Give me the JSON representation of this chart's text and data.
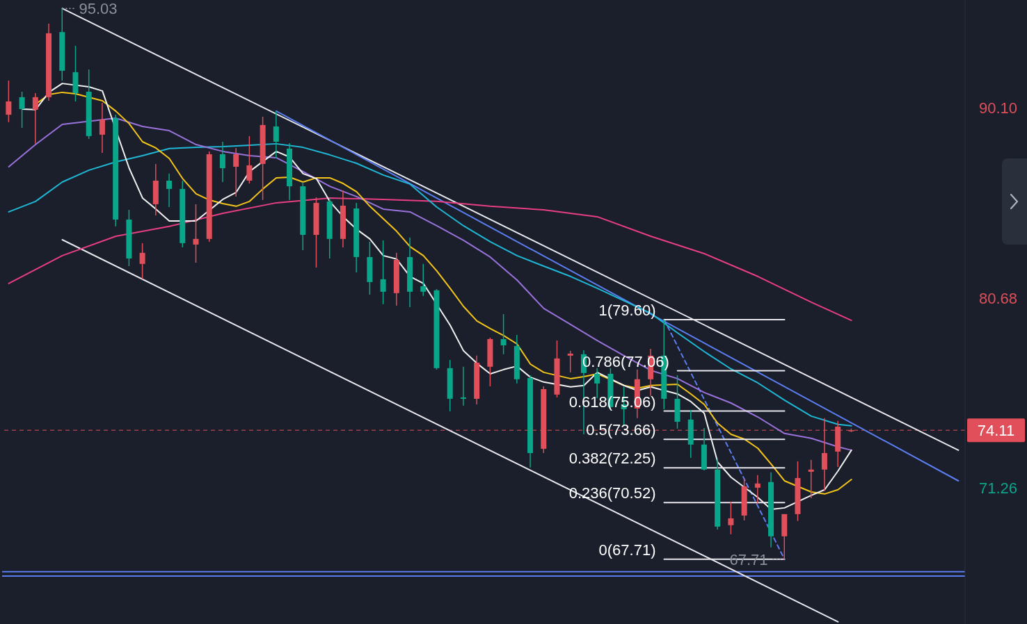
{
  "chart_data": {
    "type": "candlestick",
    "categories": [
      null,
      null,
      null,
      null,
      null,
      null,
      null,
      null,
      null,
      null,
      null,
      null,
      null,
      null,
      null,
      null,
      null,
      null,
      null,
      null,
      null,
      null,
      null,
      null,
      null,
      null,
      null,
      null,
      null,
      null,
      null,
      null,
      null,
      null,
      null,
      null,
      null,
      null,
      null,
      null,
      null,
      null,
      null,
      null,
      null,
      null,
      null,
      null,
      null,
      null,
      null,
      null,
      null,
      null,
      null,
      null,
      null,
      null,
      null,
      null,
      null,
      null,
      null,
      null,
      null,
      null,
      null,
      null,
      null,
      null,
      null,
      null
    ],
    "ohlc": [
      [
        89.76,
        91.45,
        89.39,
        90.42
      ],
      [
        90.63,
        90.9,
        89.11,
        90.04
      ],
      [
        90.01,
        90.83,
        88.32,
        90.63
      ],
      [
        90.63,
        94.28,
        90.45,
        93.8
      ],
      [
        93.86,
        95.03,
        91.45,
        91.94
      ],
      [
        91.87,
        93.18,
        90.42,
        90.83
      ],
      [
        90.9,
        92.0,
        88.56,
        88.7
      ],
      [
        88.77,
        90.35,
        87.87,
        89.52
      ],
      [
        89.59,
        89.76,
        84.22,
        84.56
      ],
      [
        84.56,
        85.04,
        82.25,
        82.63
      ],
      [
        82.36,
        83.39,
        81.6,
        82.91
      ],
      [
        85.32,
        87.32,
        84.77,
        86.49
      ],
      [
        86.49,
        86.84,
        85.18,
        86.08
      ],
      [
        86.08,
        86.49,
        83.18,
        83.39
      ],
      [
        83.32,
        85.32,
        82.42,
        83.6
      ],
      [
        83.6,
        87.94,
        83.46,
        87.8
      ],
      [
        87.8,
        88.42,
        86.42,
        87.11
      ],
      [
        87.18,
        88.11,
        85.7,
        87.8
      ],
      [
        86.49,
        88.7,
        86.35,
        87.25
      ],
      [
        87.32,
        89.66,
        85.53,
        89.25
      ],
      [
        89.18,
        89.94,
        87.59,
        88.42
      ],
      [
        88.08,
        88.35,
        85.53,
        86.21
      ],
      [
        86.21,
        86.42,
        83.04,
        83.8
      ],
      [
        83.8,
        85.66,
        82.18,
        85.39
      ],
      [
        85.46,
        85.63,
        82.63,
        83.6
      ],
      [
        83.6,
        86.01,
        83.18,
        85.25
      ],
      [
        85.11,
        85.39,
        81.94,
        82.7
      ],
      [
        82.7,
        83.46,
        80.84,
        81.46
      ],
      [
        81.6,
        83.53,
        80.36,
        80.98
      ],
      [
        80.91,
        82.91,
        80.29,
        82.56
      ],
      [
        82.7,
        83.67,
        80.22,
        80.98
      ],
      [
        81.25,
        82.36,
        80.77,
        80.98
      ],
      [
        81.05,
        81.11,
        77.12,
        77.19
      ],
      [
        77.19,
        77.6,
        75.05,
        75.67
      ],
      [
        75.74,
        77.26,
        75.33,
        75.67
      ],
      [
        75.67,
        77.81,
        75.39,
        77.46
      ],
      [
        77.26,
        78.7,
        76.29,
        78.63
      ],
      [
        78.63,
        79.87,
        77.88,
        78.32
      ],
      [
        78.29,
        78.84,
        76.43,
        76.64
      ],
      [
        76.7,
        76.84,
        72.26,
        72.98
      ],
      [
        73.19,
        76.29,
        72.98,
        76.15
      ],
      [
        75.88,
        78.56,
        75.74,
        77.67
      ],
      [
        77.81,
        78.05,
        76.98,
        77.91
      ],
      [
        77.88,
        78.08,
        73.91,
        76.95
      ],
      [
        76.91,
        77.19,
        75.7,
        76.43
      ],
      [
        76.91,
        77.19,
        75.19,
        75.26
      ],
      [
        75.39,
        76.26,
        74.33,
        75.15
      ],
      [
        75.19,
        77.12,
        74.71,
        76.64
      ],
      [
        76.64,
        78.15,
        75.81,
        77.81
      ],
      [
        77.81,
        79.6,
        75.15,
        75.67
      ],
      [
        75.67,
        76.84,
        74.19,
        74.53
      ],
      [
        74.64,
        75.12,
        72.74,
        73.4
      ],
      [
        73.4,
        74.22,
        72.12,
        72.16
      ],
      [
        72.16,
        72.71,
        69.19,
        69.33
      ],
      [
        69.4,
        70.57,
        68.95,
        69.74
      ],
      [
        69.88,
        71.74,
        69.64,
        71.33
      ],
      [
        71.26,
        71.88,
        70.47,
        71.47
      ],
      [
        71.54,
        72.02,
        68.3,
        68.85
      ],
      [
        68.85,
        69.95,
        67.71,
        69.95
      ],
      [
        69.95,
        72.57,
        69.61,
        71.74
      ],
      [
        72.05,
        72.64,
        70.74,
        72.16
      ],
      [
        72.16,
        74.71,
        71.09,
        72.98
      ],
      [
        73.05,
        74.57,
        72.29,
        74.29
      ],
      [
        74.08,
        74.19,
        74.02,
        74.11
      ],
      null,
      null,
      null,
      null,
      null,
      null,
      null,
      null
    ],
    "colors": [
      "#e04f5a",
      "#0aa68a",
      "#e04f5a",
      "#e04f5a",
      "#0aa68a",
      "#0aa68a",
      "#0aa68a",
      "#e04f5a",
      "#0aa68a",
      "#0aa68a",
      "#e04f5a",
      "#e04f5a",
      "#0aa68a",
      "#0aa68a",
      "#e04f5a",
      "#e04f5a",
      "#0aa68a",
      "#e04f5a",
      "#e04f5a",
      "#e04f5a",
      "#0aa68a",
      "#0aa68a",
      "#0aa68a",
      "#e04f5a",
      "#0aa68a",
      "#e04f5a",
      "#0aa68a",
      "#0aa68a",
      "#0aa68a",
      "#e04f5a",
      "#0aa68a",
      "#0aa68a",
      "#0aa68a",
      "#0aa68a",
      "#0aa68a",
      "#e04f5a",
      "#e04f5a",
      "#0aa68a",
      "#0aa68a",
      "#0aa68a",
      "#e04f5a",
      "#e04f5a",
      "#e04f5a",
      "#0aa68a",
      "#0aa68a",
      "#0aa68a",
      "#0aa68a",
      "#e04f5a",
      "#e04f5a",
      "#0aa68a",
      "#0aa68a",
      "#0aa68a",
      "#0aa68a",
      "#0aa68a",
      "#e04f5a",
      "#e04f5a",
      "#e04f5a",
      "#0aa68a",
      "#e04f5a",
      "#e04f5a",
      "#e04f5a",
      "#e04f5a",
      "#e04f5a",
      "#e04f5a",
      null,
      null,
      null,
      null,
      null,
      null,
      null,
      null
    ],
    "series": [
      {
        "type": "line",
        "color": "#e8e8ee",
        "values": [
          null,
          null,
          null,
          null,
          95.03,
          null,
          null,
          null,
          null,
          null,
          null,
          null,
          null,
          null,
          null,
          null,
          null,
          null,
          null,
          null,
          null,
          null,
          null,
          null,
          null,
          null,
          null,
          null,
          null,
          null,
          null,
          null,
          null,
          null,
          null,
          null,
          null,
          null,
          null,
          null,
          null,
          null,
          null,
          null,
          null,
          null,
          null,
          null,
          null,
          null,
          null,
          null,
          null,
          null,
          null,
          null,
          null,
          null,
          null,
          null,
          null,
          null,
          null,
          null,
          null,
          null,
          null,
          null,
          null,
          null,
          null,
          73.12
        ]
      },
      {
        "type": "line",
        "color": "#e8e8ee",
        "values": [
          null,
          null,
          null,
          null,
          83.56,
          null,
          null,
          null,
          null,
          null,
          null,
          null,
          null,
          null,
          null,
          null,
          null,
          null,
          null,
          null,
          null,
          null,
          null,
          null,
          null,
          null,
          null,
          null,
          null,
          null,
          null,
          null,
          null,
          null,
          null,
          null,
          null,
          null,
          null,
          null,
          null,
          null,
          null,
          null,
          null,
          null,
          null,
          null,
          null,
          null,
          null,
          null,
          null,
          null,
          null,
          null,
          null,
          null,
          null,
          null,
          null,
          null,
          64.61,
          null,
          null,
          null,
          null,
          null,
          null,
          null,
          null,
          null
        ]
      },
      {
        "type": "line",
        "color": "#5b7ef0",
        "values": [
          null,
          null,
          null,
          null,
          null,
          null,
          null,
          null,
          null,
          null,
          null,
          null,
          null,
          null,
          null,
          null,
          null,
          null,
          null,
          null,
          89.94,
          null,
          null,
          null,
          null,
          null,
          null,
          null,
          null,
          null,
          null,
          null,
          null,
          null,
          null,
          null,
          null,
          null,
          null,
          null,
          null,
          null,
          null,
          null,
          null,
          null,
          null,
          null,
          null,
          null,
          null,
          null,
          null,
          null,
          null,
          null,
          null,
          null,
          null,
          null,
          null,
          null,
          null,
          null,
          null,
          null,
          null,
          null,
          null,
          null,
          null,
          71.6
        ]
      },
      {
        "type": "line",
        "color": "#5b7ef0",
        "line_style": "dashed",
        "values": [
          null,
          null,
          null,
          null,
          null,
          null,
          null,
          null,
          null,
          null,
          null,
          null,
          null,
          null,
          null,
          null,
          null,
          null,
          null,
          null,
          null,
          null,
          null,
          null,
          null,
          null,
          null,
          null,
          null,
          null,
          null,
          null,
          null,
          null,
          null,
          null,
          null,
          null,
          null,
          null,
          null,
          null,
          null,
          null,
          null,
          null,
          null,
          null,
          null,
          79.6,
          null,
          null,
          null,
          null,
          null,
          null,
          null,
          null,
          67.71,
          null,
          null,
          null,
          null,
          null,
          null,
          null,
          null,
          null,
          null,
          null,
          null,
          null
        ]
      },
      {
        "type": "line",
        "color": "#e83e82",
        "values": [
          81.39,
          null,
          null,
          null,
          82.77,
          null,
          null,
          null,
          83.73,
          null,
          null,
          null,
          84.22,
          null,
          null,
          null,
          84.87,
          null,
          null,
          null,
          85.39,
          null,
          null,
          null,
          85.63,
          null,
          null,
          null,
          85.56,
          null,
          null,
          null,
          85.46,
          null,
          null,
          null,
          85.22,
          null,
          null,
          null,
          85.04,
          null,
          null,
          null,
          84.7,
          null,
          null,
          null,
          83.73,
          null,
          null,
          null,
          82.87,
          null,
          null,
          null,
          81.74,
          null,
          null,
          null,
          80.46,
          null,
          null,
          79.56,
          null,
          null,
          null,
          null,
          null,
          null,
          null,
          null
        ]
      },
      {
        "type": "line",
        "color": "#1fb8d6",
        "values": [
          84.94,
          null,
          85.46,
          null,
          86.42,
          null,
          87.01,
          null,
          87.42,
          null,
          87.73,
          null,
          88.08,
          null,
          88.14,
          null,
          88.18,
          null,
          88.25,
          null,
          88.32,
          null,
          88.14,
          null,
          87.77,
          null,
          87.35,
          null,
          86.77,
          null,
          86.32,
          null,
          85.18,
          null,
          84.25,
          null,
          83.46,
          null,
          82.77,
          null,
          82.25,
          null,
          81.74,
          null,
          81.15,
          null,
          80.53,
          null,
          79.91,
          null,
          78.94,
          null,
          78.01,
          null,
          77.15,
          null,
          76.46,
          null,
          75.6,
          null,
          74.81,
          null,
          74.4,
          74.33,
          null,
          null,
          null,
          null,
          null,
          null,
          null,
          null
        ]
      },
      {
        "type": "line",
        "color": "#9a72dc",
        "values": [
          87.18,
          null,
          88.28,
          null,
          89.28,
          null,
          null,
          null,
          89.59,
          null,
          89.18,
          null,
          88.97,
          null,
          88.28,
          null,
          87.94,
          null,
          87.73,
          null,
          87.63,
          null,
          86.94,
          null,
          86.21,
          null,
          85.7,
          null,
          85.08,
          null,
          84.94,
          null,
          84.25,
          null,
          83.53,
          null,
          82.7,
          null,
          81.56,
          null,
          80.15,
          null,
          79.36,
          null,
          78.56,
          null,
          77.81,
          null,
          77.08,
          null,
          76.67,
          null,
          75.98,
          null,
          75.46,
          null,
          74.77,
          null,
          73.95,
          null,
          73.71,
          null,
          73.29,
          73.12,
          null,
          null,
          null,
          null,
          null,
          null,
          null,
          null
        ]
      },
      {
        "type": "line",
        "color": "#f5c518",
        "values": [
          null,
          null,
          90.28,
          90.76,
          90.87,
          90.8,
          null,
          90.45,
          89.94,
          89.32,
          88.42,
          88.11,
          87.59,
          86.59,
          85.84,
          85.53,
          85.35,
          85.22,
          85.46,
          86.08,
          86.63,
          86.66,
          86.42,
          86.63,
          86.63,
          86.35,
          85.94,
          85.22,
          84.6,
          83.98,
          83.22,
          82.77,
          82.01,
          81.15,
          80.25,
          79.53,
          79.15,
          78.81,
          78.39,
          77.39,
          76.98,
          null,
          76.67,
          76.77,
          76.91,
          null,
          76.33,
          76.19,
          76.33,
          null,
          76.39,
          75.91,
          75.39,
          74.46,
          73.91,
          73.67,
          73.22,
          72.43,
          71.6,
          null,
          71.05,
          70.95,
          71.16,
          71.67,
          null,
          null,
          null,
          null,
          null,
          null,
          null,
          null
        ]
      },
      {
        "type": "line",
        "color": "#f2f2f2",
        "values": [
          null,
          90.04,
          90.01,
          90.87,
          91.31,
          null,
          91.14,
          90.94,
          null,
          87.11,
          85.63,
          85.08,
          84.49,
          null,
          84.49,
          null,
          85.56,
          85.91,
          86.94,
          null,
          87.94,
          87.66,
          86.84,
          86.59,
          85.46,
          84.7,
          84.08,
          83.6,
          82.77,
          82.6,
          81.74,
          81.39,
          null,
          79.32,
          78.05,
          77.43,
          76.91,
          77.12,
          77.29,
          76.74,
          76.5,
          null,
          76.26,
          76.33,
          76.98,
          null,
          76.33,
          76.08,
          76.26,
          null,
          75.91,
          75.53,
          74.95,
          72.53,
          71.78,
          null,
          70.78,
          70.19,
          70.26,
          null,
          70.88,
          71.16,
          72.09,
          73.12,
          null,
          null,
          null,
          null,
          null,
          null,
          null,
          null
        ]
      },
      {
        "type": "line",
        "color": "#e8e8ee",
        "name": "1(79.60)",
        "values": [
          null,
          null,
          null,
          null,
          null,
          null,
          null,
          null,
          null,
          null,
          null,
          null,
          null,
          null,
          null,
          null,
          null,
          null,
          null,
          null,
          null,
          null,
          null,
          null,
          null,
          null,
          null,
          null,
          null,
          null,
          null,
          null,
          null,
          null,
          null,
          null,
          null,
          null,
          null,
          null,
          null,
          null,
          null,
          null,
          null,
          null,
          null,
          null,
          null,
          79.6,
          null,
          null,
          null,
          null,
          null,
          null,
          null,
          null,
          79.6,
          null,
          null,
          null,
          null,
          null,
          null,
          null,
          null,
          null,
          null,
          null,
          null,
          null
        ]
      },
      {
        "type": "line",
        "color": "#e8e8ee",
        "name": "0.786(77.06)",
        "values": [
          null,
          null,
          null,
          null,
          null,
          null,
          null,
          null,
          null,
          null,
          null,
          null,
          null,
          null,
          null,
          null,
          null,
          null,
          null,
          null,
          null,
          null,
          null,
          null,
          null,
          null,
          null,
          null,
          null,
          null,
          null,
          null,
          null,
          null,
          null,
          null,
          null,
          null,
          null,
          null,
          null,
          null,
          null,
          null,
          null,
          null,
          null,
          null,
          null,
          null,
          77.06,
          null,
          null,
          null,
          null,
          null,
          null,
          null,
          77.06,
          null,
          null,
          null,
          null,
          null,
          null,
          null,
          null,
          null,
          null,
          null,
          null,
          null
        ]
      },
      {
        "type": "line",
        "color": "#e8e8ee",
        "name": "0.618(75.06)",
        "values": [
          null,
          null,
          null,
          null,
          null,
          null,
          null,
          null,
          null,
          null,
          null,
          null,
          null,
          null,
          null,
          null,
          null,
          null,
          null,
          null,
          null,
          null,
          null,
          null,
          null,
          null,
          null,
          null,
          null,
          null,
          null,
          null,
          null,
          null,
          null,
          null,
          null,
          null,
          null,
          null,
          null,
          null,
          null,
          null,
          null,
          null,
          null,
          null,
          null,
          75.06,
          null,
          null,
          null,
          null,
          null,
          null,
          null,
          null,
          75.06,
          null,
          null,
          null,
          null,
          null,
          null,
          null,
          null,
          null,
          null,
          null,
          null,
          null
        ]
      },
      {
        "type": "line",
        "color": "#e8e8ee",
        "name": "0.5(73.66)",
        "values": [
          null,
          null,
          null,
          null,
          null,
          null,
          null,
          null,
          null,
          null,
          null,
          null,
          null,
          null,
          null,
          null,
          null,
          null,
          null,
          null,
          null,
          null,
          null,
          null,
          null,
          null,
          null,
          null,
          null,
          null,
          null,
          null,
          null,
          null,
          null,
          null,
          null,
          null,
          null,
          null,
          null,
          null,
          null,
          null,
          null,
          null,
          null,
          null,
          null,
          73.66,
          null,
          null,
          null,
          null,
          null,
          null,
          null,
          null,
          73.66,
          null,
          null,
          null,
          null,
          null,
          null,
          null,
          null,
          null,
          null,
          null,
          null,
          null
        ]
      },
      {
        "type": "line",
        "color": "#e8e8ee",
        "name": "0.382(72.25)",
        "values": [
          null,
          null,
          null,
          null,
          null,
          null,
          null,
          null,
          null,
          null,
          null,
          null,
          null,
          null,
          null,
          null,
          null,
          null,
          null,
          null,
          null,
          null,
          null,
          null,
          null,
          null,
          null,
          null,
          null,
          null,
          null,
          null,
          null,
          null,
          null,
          null,
          null,
          null,
          null,
          null,
          null,
          null,
          null,
          null,
          null,
          null,
          null,
          null,
          null,
          72.25,
          null,
          null,
          null,
          null,
          null,
          null,
          null,
          null,
          72.25,
          null,
          null,
          null,
          null,
          null,
          null,
          null,
          null,
          null,
          null,
          null,
          null,
          null
        ]
      },
      {
        "type": "line",
        "color": "#e8e8ee",
        "name": "0.236(70.52)",
        "values": [
          null,
          null,
          null,
          null,
          null,
          null,
          null,
          null,
          null,
          null,
          null,
          null,
          null,
          null,
          null,
          null,
          null,
          null,
          null,
          null,
          null,
          null,
          null,
          null,
          null,
          null,
          null,
          null,
          null,
          null,
          null,
          null,
          null,
          null,
          null,
          null,
          null,
          null,
          null,
          null,
          null,
          null,
          null,
          null,
          null,
          null,
          null,
          null,
          null,
          70.52,
          null,
          null,
          null,
          null,
          null,
          null,
          null,
          null,
          70.52,
          null,
          null,
          null,
          null,
          null,
          null,
          null,
          null,
          null,
          null,
          null,
          null,
          null
        ]
      },
      {
        "type": "line",
        "color": "#e8e8ee",
        "name": "0(67.71)",
        "values": [
          null,
          null,
          null,
          null,
          null,
          null,
          null,
          null,
          null,
          null,
          null,
          null,
          null,
          null,
          null,
          null,
          null,
          null,
          null,
          null,
          null,
          null,
          null,
          null,
          null,
          null,
          null,
          null,
          null,
          null,
          null,
          null,
          null,
          null,
          null,
          null,
          null,
          null,
          null,
          null,
          null,
          null,
          null,
          null,
          null,
          null,
          null,
          null,
          null,
          67.71,
          null,
          null,
          null,
          null,
          null,
          null,
          null,
          null,
          67.71,
          null,
          null,
          null,
          null,
          null,
          null,
          null,
          null,
          null,
          null,
          null,
          null,
          null
        ]
      }
    ],
    "ylim": [
      64.5,
      95.45
    ],
    "yticks": [
      {
        "value": 90.1,
        "label": "90.10"
      },
      80.68,
      71.26
    ],
    "tick_labels": "y",
    "ref_lines": [
      {
        "axis": "y",
        "value": 74.11,
        "label": "74.11",
        "color": "#e04f5a",
        "line_style": "dashed"
      },
      {
        "axis": "y",
        "value": 67.09,
        "label": null,
        "color": "#5b7ef0"
      },
      {
        "axis": "y",
        "value": 66.88,
        "label": null,
        "color": "#5b7ef0"
      }
    ],
    "annotations": [
      "95.03",
      "67.71"
    ]
  }
}
